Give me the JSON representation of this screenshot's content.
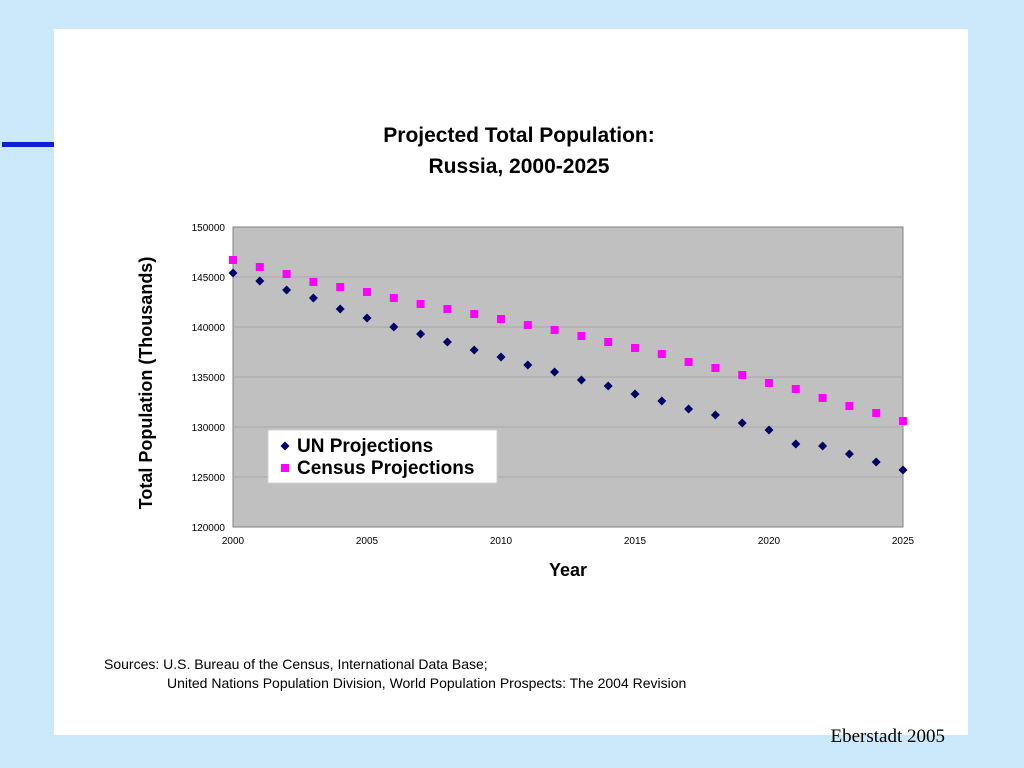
{
  "colors": {
    "background": "#cce9fb",
    "accent_bar": "#0b20d8",
    "plot_area": "#c0c0c0",
    "un_series": "#000066",
    "census_series": "#ff00ff"
  },
  "chart_data": {
    "type": "scatter",
    "title_line1": "Projected Total Population:",
    "title_line2": "Russia, 2000-2025",
    "xlabel": "Year",
    "ylabel": "Total Population (Thousands)",
    "xlim": [
      2000,
      2025
    ],
    "ylim": [
      120000,
      150000
    ],
    "x_ticks": [
      2000,
      2005,
      2010,
      2015,
      2020,
      2025
    ],
    "y_ticks": [
      120000,
      125000,
      130000,
      135000,
      140000,
      145000,
      150000
    ],
    "grid": "horizontal-major",
    "legend_position": "lower-left",
    "x": [
      2000,
      2001,
      2002,
      2003,
      2004,
      2005,
      2006,
      2007,
      2008,
      2009,
      2010,
      2011,
      2012,
      2013,
      2014,
      2015,
      2016,
      2017,
      2018,
      2019,
      2020,
      2021,
      2022,
      2023,
      2024,
      2025
    ],
    "series": [
      {
        "name": "UN Projections",
        "marker": "diamond",
        "color": "#000066",
        "values": [
          145400,
          144600,
          143700,
          142900,
          141800,
          140900,
          140000,
          139300,
          138500,
          137700,
          137000,
          136200,
          135500,
          134700,
          134100,
          133300,
          132600,
          131800,
          131200,
          130400,
          129700,
          128300,
          128100,
          127300,
          126500,
          125700
        ]
      },
      {
        "name": "Census Projections",
        "marker": "square",
        "color": "#ff00ff",
        "values": [
          146700,
          146000,
          145300,
          144500,
          144000,
          143500,
          142900,
          142300,
          141800,
          141300,
          140800,
          140200,
          139700,
          139100,
          138500,
          137900,
          137300,
          136500,
          135900,
          135200,
          134400,
          133800,
          132900,
          132100,
          131400,
          130600
        ]
      }
    ]
  },
  "sources": {
    "line1": "Sources: U.S. Bureau of the Census, International Data Base;",
    "line2": "United Nations Population Division, World Population Prospects: The 2004 Revision"
  },
  "credit": "Eberstadt 2005"
}
